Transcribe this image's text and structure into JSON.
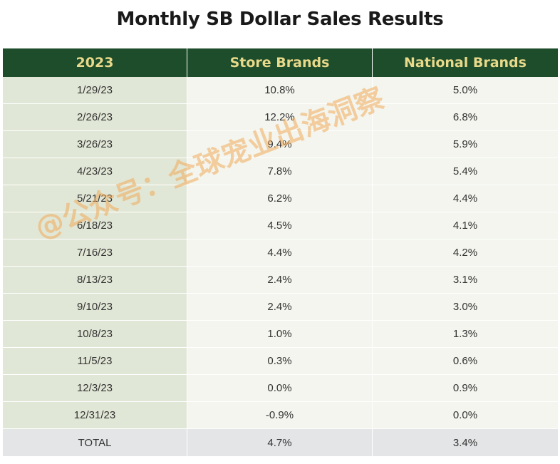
{
  "title": "Monthly SB Dollar Sales Results",
  "colors": {
    "header_bg": "#1e4d2b",
    "header_text": "#e9d98a",
    "date_column_bg": "#e1e7d6",
    "value_column_bg": "#f3f5ee",
    "total_row_bg": "#e4e5e6",
    "watermark": "#f0aa5a"
  },
  "chart_data": {
    "type": "table",
    "title": "Monthly SB Dollar Sales Results",
    "columns": [
      "2023",
      "Store Brands",
      "National Brands"
    ],
    "rows": [
      [
        "1/29/23",
        "10.8%",
        "5.0%"
      ],
      [
        "2/26/23",
        "12.2%",
        "6.8%"
      ],
      [
        "3/26/23",
        "9.4%",
        "5.9%"
      ],
      [
        "4/23/23",
        "7.8%",
        "5.4%"
      ],
      [
        "5/21/23",
        "6.2%",
        "4.4%"
      ],
      [
        "6/18/23",
        "4.5%",
        "4.1%"
      ],
      [
        "7/16/23",
        "4.4%",
        "4.2%"
      ],
      [
        "8/13/23",
        "2.4%",
        "3.1%"
      ],
      [
        "9/10/23",
        "2.4%",
        "3.0%"
      ],
      [
        "10/8/23",
        "1.0%",
        "1.3%"
      ],
      [
        "11/5/23",
        "0.3%",
        "0.6%"
      ],
      [
        "12/3/23",
        "0.0%",
        "0.9%"
      ],
      [
        "12/31/23",
        "-0.9%",
        "0.0%"
      ]
    ],
    "total": [
      "TOTAL",
      "4.7%",
      "3.4%"
    ]
  },
  "watermark": "@公众号：全球宠业出海洞察"
}
